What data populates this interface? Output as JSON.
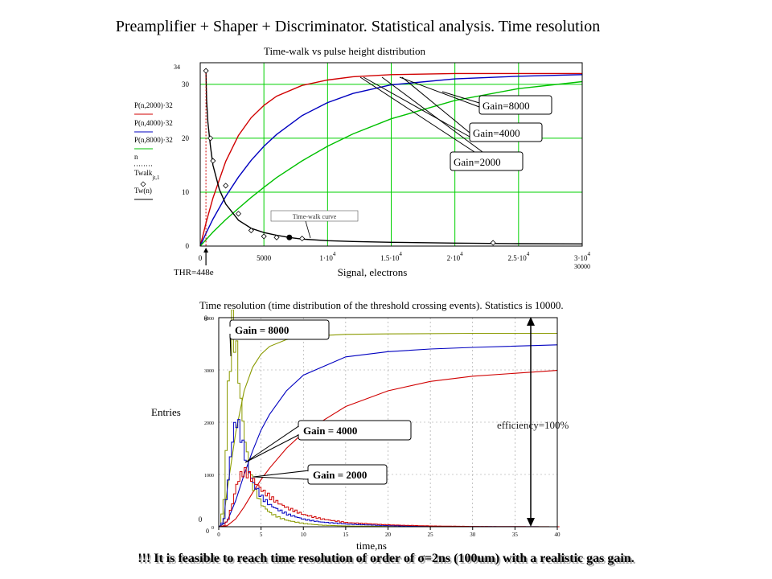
{
  "page": {
    "title": "Preamplifier + Shaper + Discriminator. Statistical analysis. Time resolution",
    "footer": "!!! It is feasible to reach time resolution of order of σ=2ns (100um) with  a realistic gas gain."
  },
  "colors": {
    "gain_2000": "#d00000",
    "gain_4000": "#0000c0",
    "gain_8000": "#00c000",
    "gain_8000_hist": "#8a9a00",
    "grid": "#00d000",
    "timewalk": "#000000"
  },
  "chart_data": [
    {
      "type": "line",
      "title": "Time-walk  vs pulse height distribution",
      "xlabel": "Signal, electrons",
      "xlim": [
        0,
        30000
      ],
      "ylim": [
        0,
        34
      ],
      "grid": true,
      "x_ticks": [
        "0",
        "5000",
        "1·10^4",
        "1.5·10^4",
        "2·10^4",
        "2.5·10^4",
        "3·10^4"
      ],
      "x_max_label": "30000",
      "y_ticks": [
        "0",
        "10",
        "20",
        "30"
      ],
      "y_max_label": "34",
      "legend_expressions": [
        "P(n,2000)·32",
        "P(n,4000)·32",
        "P(n,8000)·32",
        "n",
        "Twalk jt,1",
        "Tw(n)"
      ],
      "series": [
        {
          "name": "Gain=2000",
          "x": [
            0,
            500,
            1000,
            2000,
            3000,
            4000,
            5000,
            6000,
            8000,
            10000,
            12000,
            15000,
            20000,
            25000,
            30000
          ],
          "y": [
            0,
            4.7,
            8.9,
            15.7,
            20.5,
            23.8,
            26.1,
            27.8,
            29.8,
            30.8,
            31.4,
            31.8,
            32.0,
            32.0,
            32.0
          ]
        },
        {
          "name": "Gain=4000",
          "x": [
            0,
            500,
            1000,
            2000,
            3000,
            4000,
            5000,
            6000,
            8000,
            10000,
            12000,
            15000,
            20000,
            25000,
            30000
          ],
          "y": [
            0,
            2.6,
            5.0,
            9.2,
            12.8,
            15.9,
            18.5,
            20.7,
            24.2,
            26.6,
            28.3,
            29.9,
            31.0,
            31.5,
            31.8
          ]
        },
        {
          "name": "Gain=8000",
          "x": [
            0,
            1000,
            2000,
            3000,
            4000,
            5000,
            6000,
            8000,
            10000,
            12000,
            15000,
            20000,
            25000,
            30000
          ],
          "y": [
            0,
            2.6,
            4.9,
            7.0,
            9.0,
            10.9,
            12.7,
            15.8,
            18.5,
            20.8,
            23.6,
            27.0,
            29.2,
            30.5
          ]
        },
        {
          "name": "Time-walk curve",
          "x": [
            448,
            500,
            600,
            800,
            1000,
            1500,
            2000,
            3000,
            4000,
            5000,
            6000,
            7000,
            8000,
            10000,
            12000,
            15000,
            20000,
            25000,
            30000
          ],
          "y": [
            32.5,
            27.0,
            23.0,
            18.5,
            15.0,
            10.5,
            7.8,
            4.8,
            3.3,
            2.5,
            2.0,
            1.6,
            1.3,
            1.0,
            0.85,
            0.7,
            0.55,
            0.45,
            0.4
          ]
        }
      ],
      "marker_points": {
        "x": [
          448,
          800,
          1000,
          2000,
          3000,
          4000,
          5000,
          6000,
          8000,
          23000
        ],
        "y": [
          32.5,
          20.0,
          15.8,
          11.2,
          6.0,
          2.9,
          1.8,
          1.6,
          1.4,
          0.6
        ]
      },
      "annotations": {
        "gain_8000": "Gain=8000",
        "gain_4000": "Gain=4000",
        "gain_2000": "Gain=2000",
        "timewalk": "Time-walk curve",
        "threshold": "THR=448e"
      },
      "threshold_electrons": 448
    },
    {
      "type": "line",
      "title": "Time resolution (time distribution of the threshold crossing events). Statistics is 10000.",
      "xlabel": "time,ns",
      "ylabel": "Entries",
      "xlim": [
        0,
        40
      ],
      "ylim": [
        0,
        4000
      ],
      "grid": true,
      "x_ticks": [
        "0",
        "5",
        "10",
        "15",
        "20",
        "25",
        "30",
        "35",
        "40"
      ],
      "y_ticks": [
        "0",
        "1000",
        "2000",
        "3000",
        "4000"
      ],
      "corner_labels": {
        "y_origin": "0",
        "x_origin": "0"
      },
      "histograms": [
        {
          "name": "Gain = 8000",
          "x": [
            0,
            0.5,
            1,
            1.5,
            2,
            2.5,
            3,
            3.5,
            4,
            5,
            6,
            7,
            8,
            10,
            12,
            15,
            20,
            25,
            30,
            40
          ],
          "y": [
            0,
            500,
            2600,
            3850,
            3350,
            2400,
            1650,
            1100,
            750,
            420,
            260,
            180,
            120,
            60,
            30,
            15,
            5,
            2,
            0,
            0
          ]
        },
        {
          "name": "Gain = 4000",
          "x": [
            0,
            0.5,
            1,
            1.5,
            2,
            2.5,
            3,
            3.5,
            4,
            5,
            6,
            7,
            8,
            10,
            12,
            15,
            20,
            25,
            30,
            40
          ],
          "y": [
            0,
            150,
            900,
            1700,
            2050,
            1750,
            1350,
            1050,
            820,
            560,
            410,
            320,
            240,
            140,
            90,
            50,
            20,
            8,
            3,
            0
          ]
        },
        {
          "name": "Gain = 2000",
          "x": [
            0,
            0.5,
            1,
            1.5,
            2,
            2.5,
            3,
            3.5,
            4,
            5,
            6,
            7,
            8,
            10,
            12,
            15,
            20,
            25,
            30,
            40
          ],
          "y": [
            0,
            20,
            150,
            450,
            800,
            1000,
            1050,
            980,
            880,
            700,
            560,
            450,
            360,
            230,
            150,
            80,
            35,
            15,
            6,
            0
          ]
        }
      ],
      "cumulative_curves": [
        {
          "name": "Gain = 8000",
          "x": [
            0,
            0.5,
            1,
            2,
            3,
            4,
            5,
            6,
            8,
            10,
            15,
            20,
            30,
            40
          ],
          "y": [
            0,
            50,
            700,
            1800,
            2600,
            3050,
            3300,
            3450,
            3580,
            3640,
            3680,
            3690,
            3700,
            3700
          ]
        },
        {
          "name": "Gain = 4000",
          "x": [
            0,
            1,
            2,
            3,
            4,
            5,
            6,
            8,
            10,
            15,
            20,
            25,
            30,
            40
          ],
          "y": [
            0,
            100,
            500,
            1000,
            1450,
            1850,
            2150,
            2600,
            2900,
            3250,
            3350,
            3400,
            3430,
            3480
          ]
        },
        {
          "name": "Gain = 2000",
          "x": [
            0,
            1,
            2,
            3,
            4,
            5,
            6,
            8,
            10,
            15,
            20,
            25,
            30,
            40
          ],
          "y": [
            0,
            20,
            150,
            380,
            650,
            900,
            1120,
            1500,
            1800,
            2300,
            2600,
            2780,
            2880,
            2990
          ]
        }
      ],
      "annotations": {
        "gain_8000": "Gain = 8000",
        "gain_4000": "Gain = 4000",
        "gain_2000": "Gain = 2000",
        "efficiency": "efficiency=100%"
      }
    }
  ]
}
